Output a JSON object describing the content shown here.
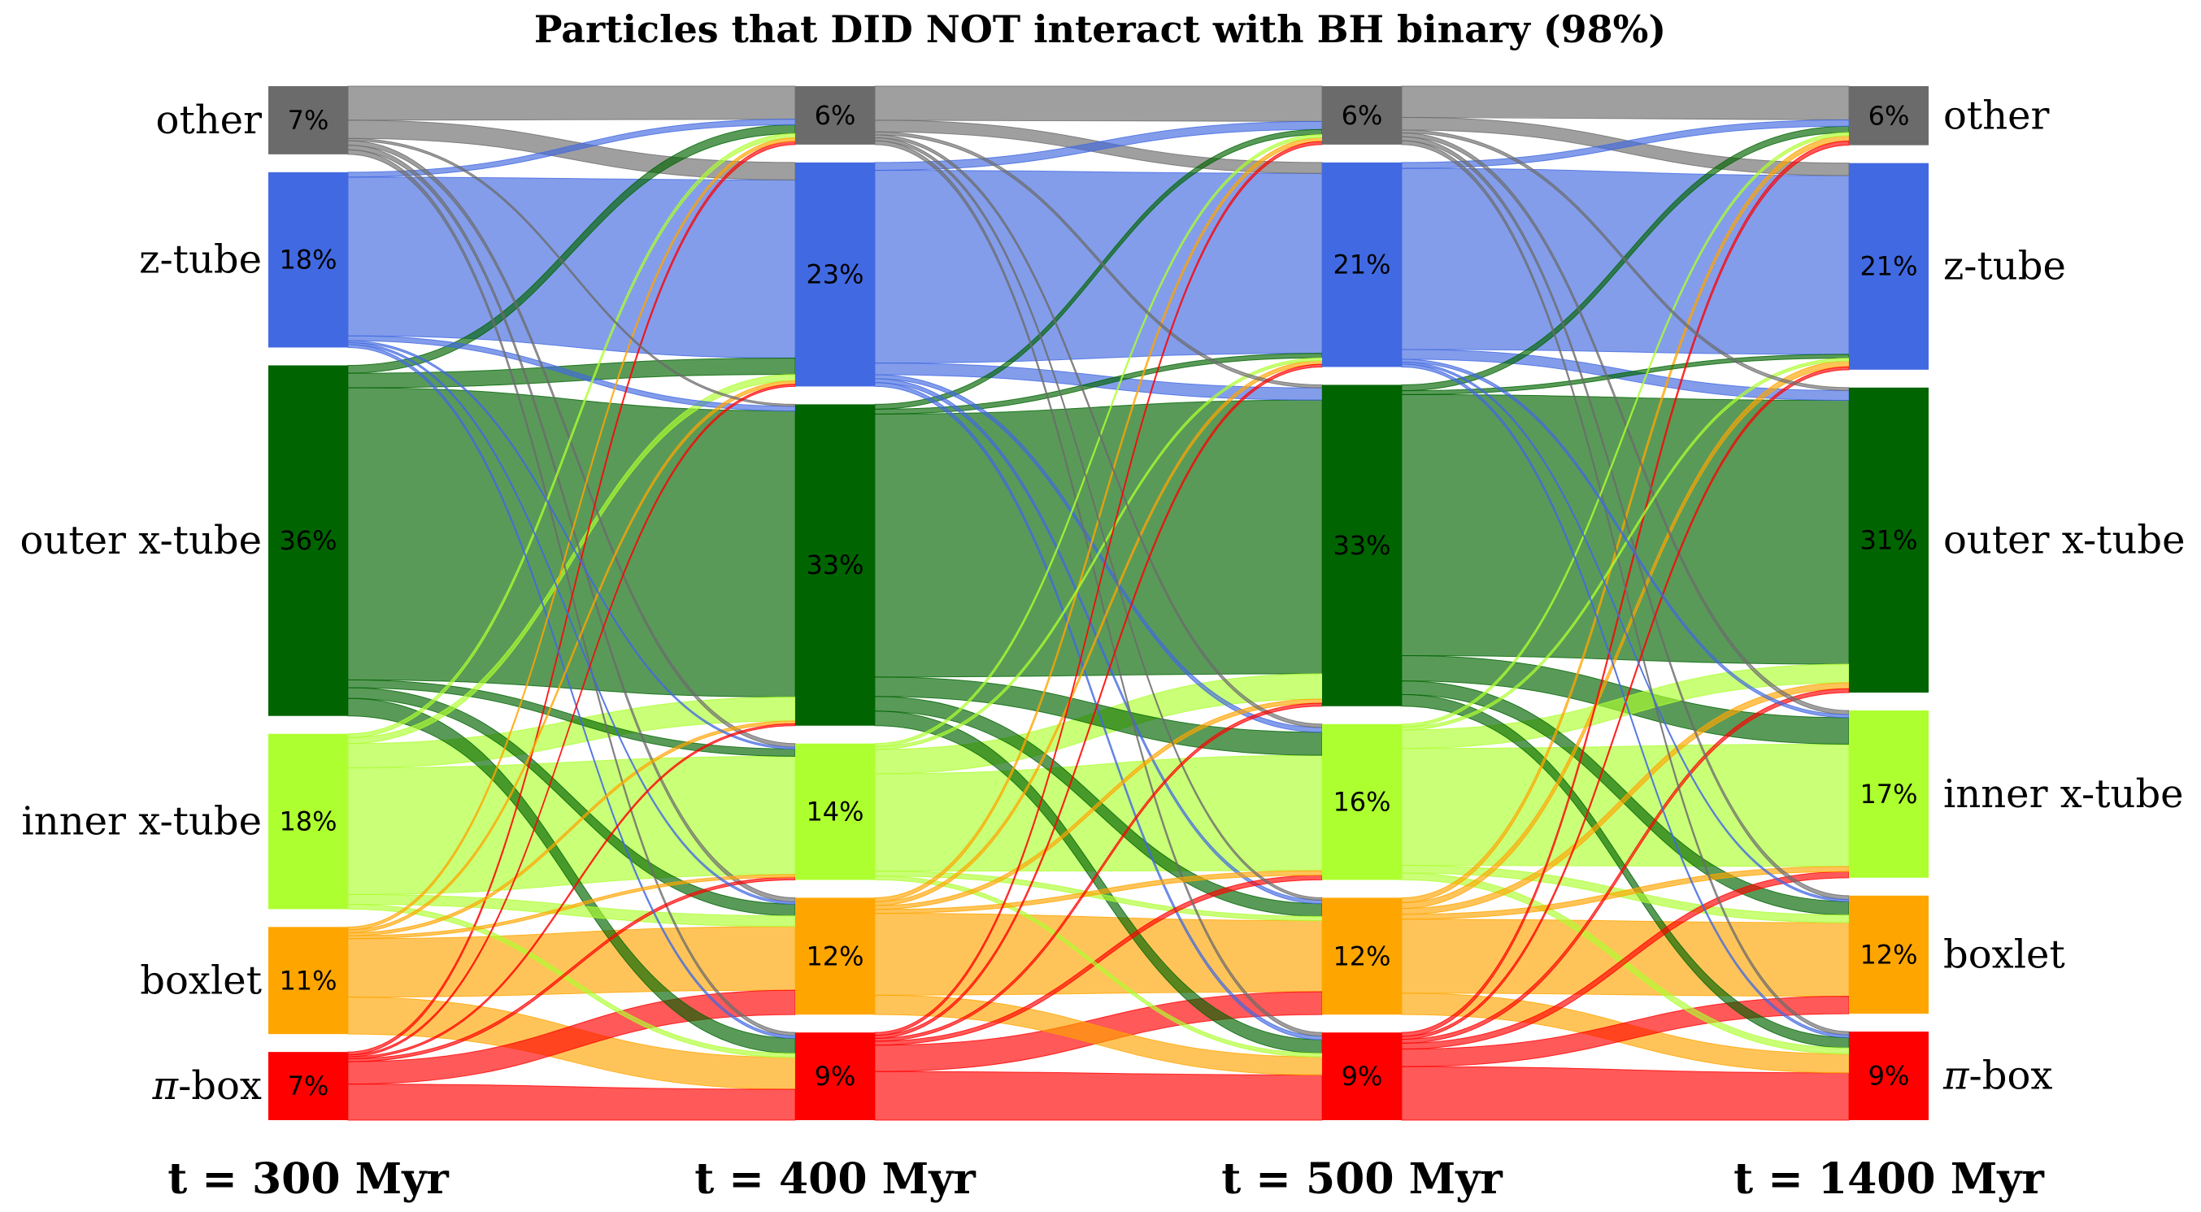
{
  "chart_data": {
    "type": "sankey",
    "title": "Particles that DID NOT interact with BH binary (98%)",
    "categories": [
      "other",
      "z-tube",
      "outer x-tube",
      "inner x-tube",
      "boxlet",
      "π-box"
    ],
    "category_labels": [
      {
        "key": "other",
        "text": "other"
      },
      {
        "key": "z-tube",
        "text": "z-tube"
      },
      {
        "key": "outer x-tube",
        "text": "outer x-tube"
      },
      {
        "key": "inner x-tube",
        "text": "inner x-tube"
      },
      {
        "key": "boxlet",
        "text": "boxlet"
      },
      {
        "key": "pi-box",
        "text": "-box",
        "italic_prefix": "π"
      }
    ],
    "colors": {
      "other": "#6b6b6b",
      "z-tube": "#4169e1",
      "outer x-tube": "#006400",
      "inner x-tube": "#adff2f",
      "boxlet": "#ffa500",
      "π-box": "#ff0000"
    },
    "times": [
      "t = 300 Myr",
      "t = 400 Myr",
      "t = 500 Myr",
      "t = 1400 Myr"
    ],
    "percentages": [
      [
        7,
        18,
        36,
        18,
        11,
        7
      ],
      [
        6,
        23,
        33,
        14,
        12,
        9
      ],
      [
        6,
        21,
        33,
        16,
        12,
        9
      ],
      [
        6,
        21,
        31,
        17,
        12,
        9
      ]
    ],
    "percentage_labels": [
      [
        "7%",
        "18%",
        "36%",
        "18%",
        "11%",
        "7%"
      ],
      [
        "6%",
        "23%",
        "33%",
        "14%",
        "12%",
        "9%"
      ],
      [
        "6%",
        "21%",
        "33%",
        "16%",
        "12%",
        "9%"
      ],
      [
        "6%",
        "21%",
        "31%",
        "17%",
        "12%",
        "9%"
      ]
    ],
    "transitions": [
      [
        [
          3.0,
          1.6,
          0.2,
          0.4,
          0.4,
          0.4
        ],
        [
          0.5,
          16.3,
          0.5,
          0.2,
          0.2,
          0.3
        ],
        [
          0.8,
          1.5,
          30.0,
          0.8,
          1.1,
          1.8
        ],
        [
          0.4,
          0.6,
          2.5,
          13.0,
          1.0,
          0.5
        ],
        [
          0.3,
          0.3,
          0.3,
          0.3,
          6.0,
          3.8
        ],
        [
          0.3,
          0.2,
          0.2,
          0.3,
          2.3,
          3.7
        ]
      ],
      [
        [
          3.5,
          1.2,
          0.3,
          0.3,
          0.3,
          0.4
        ],
        [
          0.8,
          19.8,
          1.2,
          0.4,
          0.4,
          0.4
        ],
        [
          0.5,
          0.5,
          27.0,
          2.0,
          1.5,
          1.5
        ],
        [
          0.3,
          0.3,
          2.5,
          10.0,
          0.5,
          0.4
        ],
        [
          0.4,
          0.4,
          0.4,
          0.4,
          8.4,
          2.0
        ],
        [
          0.3,
          0.3,
          0.3,
          0.4,
          2.7,
          5.0
        ]
      ],
      [
        [
          3.2,
          1.3,
          0.3,
          0.4,
          0.4,
          0.4
        ],
        [
          0.6,
          18.6,
          1.0,
          0.3,
          0.2,
          0.3
        ],
        [
          0.6,
          0.4,
          26.8,
          2.6,
          1.4,
          1.2
        ],
        [
          0.3,
          0.3,
          1.9,
          12.0,
          0.8,
          0.7
        ],
        [
          0.5,
          0.6,
          0.6,
          0.5,
          7.6,
          2.2
        ],
        [
          0.4,
          0.3,
          0.4,
          0.6,
          1.8,
          5.5
        ]
      ]
    ]
  }
}
